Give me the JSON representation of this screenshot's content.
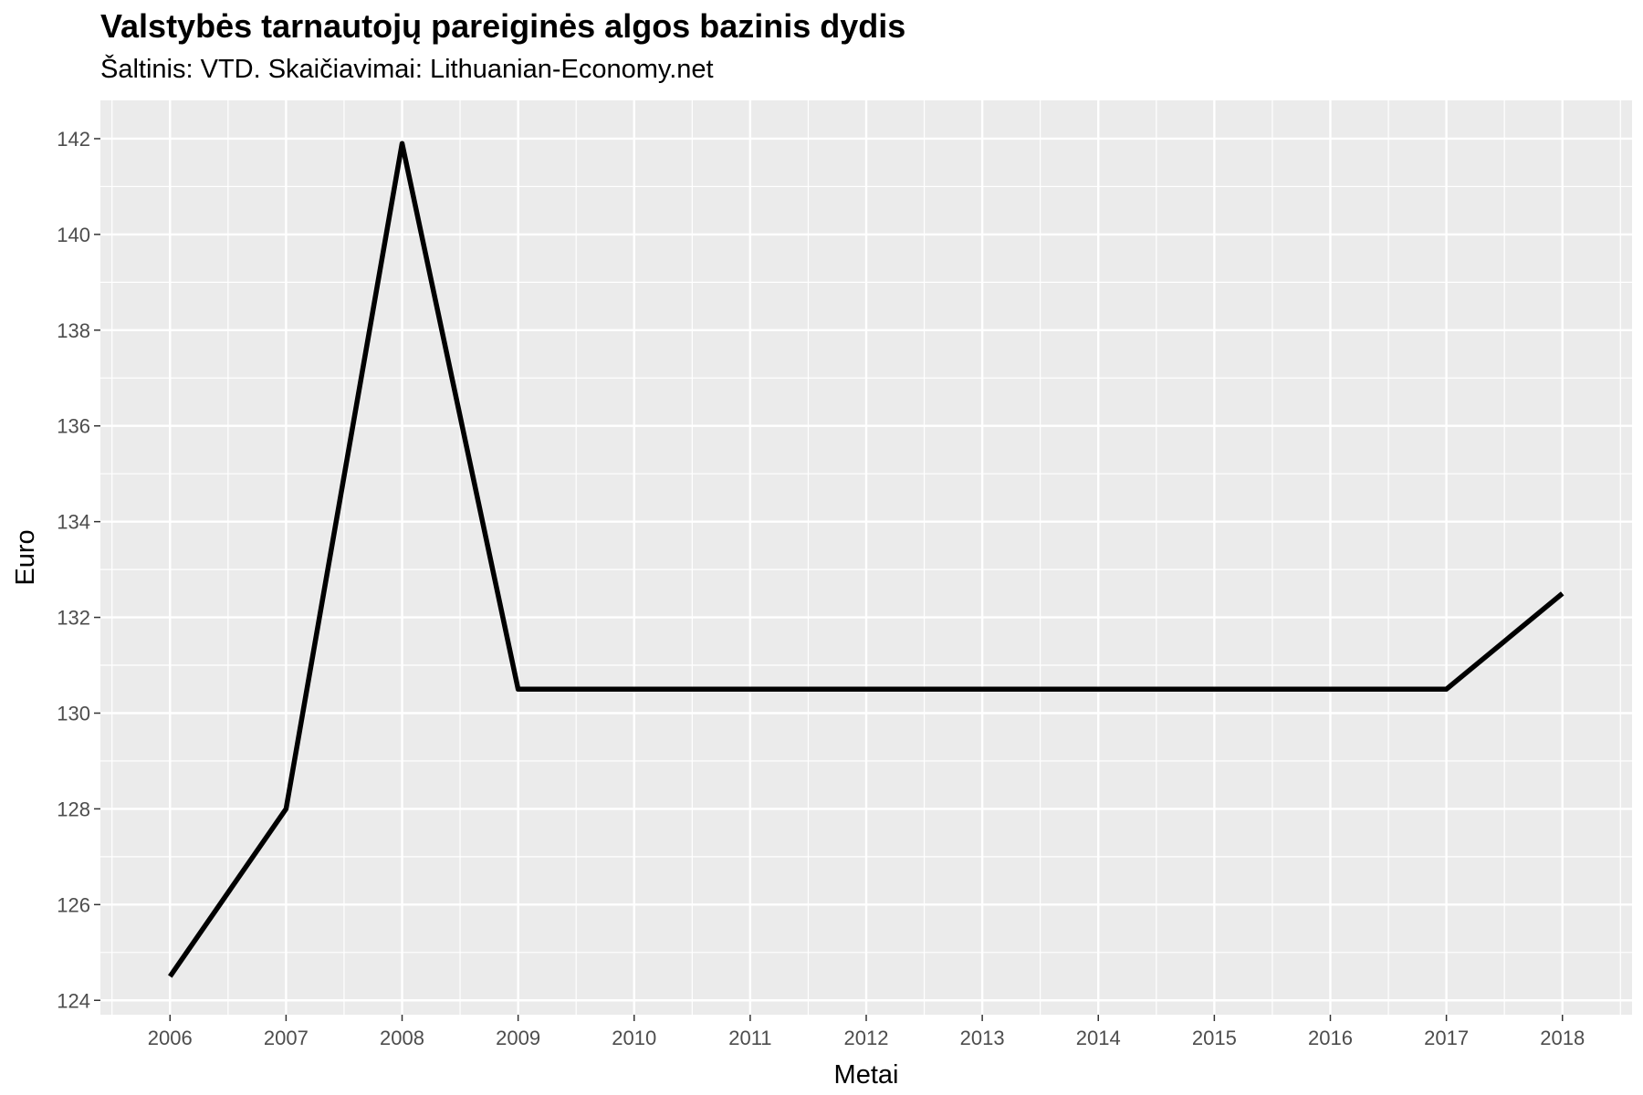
{
  "chart_data": {
    "type": "line",
    "title": "Valstybės tarnautojų pareiginės algos bazinis dydis",
    "subtitle": "Šaltinis: VTD. Skaičiavimai: Lithuanian-Economy.net",
    "xlabel": "Metai",
    "ylabel": "Euro",
    "x": [
      2006,
      2007,
      2008,
      2009,
      2010,
      2011,
      2012,
      2013,
      2014,
      2015,
      2016,
      2017,
      2018
    ],
    "series": [
      {
        "values": [
          124.5,
          128.0,
          141.9,
          130.5,
          130.5,
          130.5,
          130.5,
          130.5,
          130.5,
          130.5,
          130.5,
          130.5,
          132.5
        ]
      }
    ],
    "xticks": [
      "2006",
      "2007",
      "2008",
      "2009",
      "2010",
      "2011",
      "2012",
      "2013",
      "2014",
      "2015",
      "2016",
      "2017",
      "2018"
    ],
    "yticks": [
      "124",
      "126",
      "128",
      "130",
      "132",
      "134",
      "136",
      "138",
      "140",
      "142"
    ],
    "xlim": [
      2005.4,
      2018.6
    ],
    "ylim": [
      123.7,
      142.8
    ],
    "grid": true,
    "legend": "none",
    "colors": {
      "panel": "#ebebeb",
      "grid": "#ffffff",
      "line": "#000000",
      "tick_text": "#4d4d4d"
    }
  }
}
